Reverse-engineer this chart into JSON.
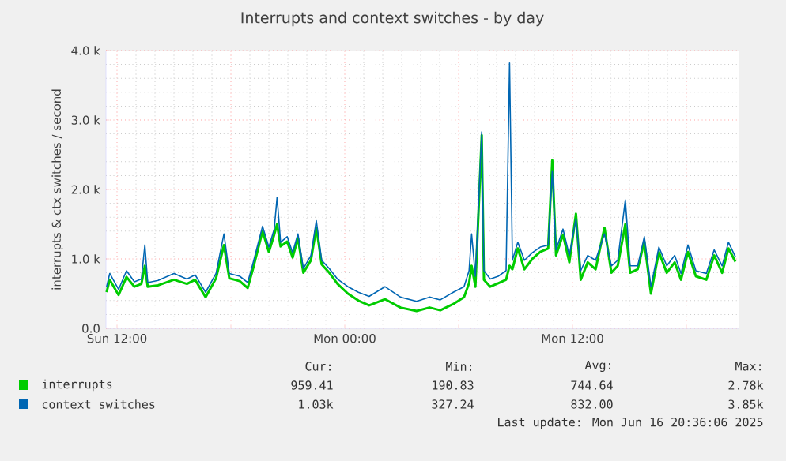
{
  "chart_data": {
    "type": "line",
    "title": "Interrupts and context switches - by day",
    "ylabel": "interrupts & ctx switches / second",
    "xlim": [
      "2025-06-15T11:25",
      "2025-06-16T20:45"
    ],
    "ylim": [
      0,
      4000
    ],
    "xticks": [
      {
        "value": "2025-06-15T12:00",
        "label": "Sun 12:00"
      },
      {
        "value": "2025-06-15T18:00",
        "label": null
      },
      {
        "value": "2025-06-16T00:00",
        "label": "Mon 00:00"
      },
      {
        "value": "2025-06-16T06:00",
        "label": null
      },
      {
        "value": "2025-06-16T12:00",
        "label": "Mon 12:00"
      },
      {
        "value": "2025-06-16T18:00",
        "label": null
      }
    ],
    "yticks": [
      {
        "value": 0,
        "label": "0.0"
      },
      {
        "value": 1000,
        "label": "1.0 k"
      },
      {
        "value": 2000,
        "label": "2.0 k"
      },
      {
        "value": 3000,
        "label": "3.0 k"
      },
      {
        "value": 4000,
        "label": "4.0 k"
      }
    ],
    "grid": true,
    "legend": "bottom",
    "x": [
      "2025-06-15T11:27",
      "2025-06-15T11:37",
      "2025-06-15T12:05",
      "2025-06-15T12:30",
      "2025-06-15T12:55",
      "2025-06-15T13:17",
      "2025-06-15T13:28",
      "2025-06-15T13:37",
      "2025-06-15T14:10",
      "2025-06-15T15:00",
      "2025-06-15T15:41",
      "2025-06-15T16:07",
      "2025-06-15T16:40",
      "2025-06-15T17:13",
      "2025-06-15T17:38",
      "2025-06-15T17:55",
      "2025-06-15T18:28",
      "2025-06-15T18:53",
      "2025-06-15T19:10",
      "2025-06-15T19:40",
      "2025-06-15T20:00",
      "2025-06-15T20:17",
      "2025-06-15T20:26",
      "2025-06-15T20:37",
      "2025-06-15T20:58",
      "2025-06-15T21:15",
      "2025-06-15T21:32",
      "2025-06-15T21:49",
      "2025-06-15T22:13",
      "2025-06-15T22:30",
      "2025-06-15T22:47",
      "2025-06-15T23:11",
      "2025-06-15T23:37",
      "2025-06-16T00:10",
      "2025-06-16T00:43",
      "2025-06-16T01:17",
      "2025-06-16T02:07",
      "2025-06-16T02:56",
      "2025-06-16T03:47",
      "2025-06-16T04:28",
      "2025-06-16T05:02",
      "2025-06-16T05:43",
      "2025-06-16T06:17",
      "2025-06-16T06:33",
      "2025-06-16T06:41",
      "2025-06-16T06:53",
      "2025-06-16T07:13",
      "2025-06-16T07:20",
      "2025-06-16T07:40",
      "2025-06-16T08:05",
      "2025-06-16T08:30",
      "2025-06-16T08:41",
      "2025-06-16T08:50",
      "2025-06-16T09:07",
      "2025-06-16T09:28",
      "2025-06-16T09:53",
      "2025-06-16T10:18",
      "2025-06-16T10:43",
      "2025-06-16T10:56",
      "2025-06-16T11:08",
      "2025-06-16T11:30",
      "2025-06-16T11:50",
      "2025-06-16T12:11",
      "2025-06-16T12:26",
      "2025-06-16T12:48",
      "2025-06-16T13:13",
      "2025-06-16T13:41",
      "2025-06-16T14:03",
      "2025-06-16T14:23",
      "2025-06-16T14:47",
      "2025-06-16T15:02",
      "2025-06-16T15:26",
      "2025-06-16T15:47",
      "2025-06-16T16:08",
      "2025-06-16T16:33",
      "2025-06-16T16:58",
      "2025-06-16T17:23",
      "2025-06-16T17:43",
      "2025-06-16T18:05",
      "2025-06-16T18:30",
      "2025-06-16T19:03",
      "2025-06-16T19:28",
      "2025-06-16T19:53",
      "2025-06-16T20:13",
      "2025-06-16T20:35"
    ],
    "series": [
      {
        "name": "interrupts",
        "color": "#00cc00",
        "values": [
          520,
          700,
          480,
          740,
          600,
          640,
          900,
          600,
          620,
          700,
          640,
          700,
          450,
          720,
          1200,
          720,
          680,
          580,
          860,
          1400,
          1100,
          1350,
          1500,
          1180,
          1250,
          1020,
          1300,
          800,
          980,
          1450,
          920,
          800,
          640,
          500,
          400,
          330,
          420,
          300,
          250,
          300,
          260,
          350,
          450,
          650,
          900,
          600,
          2780,
          700,
          600,
          650,
          700,
          900,
          850,
          1150,
          850,
          1000,
          1100,
          1150,
          2420,
          1050,
          1350,
          950,
          1650,
          700,
          950,
          850,
          1450,
          800,
          900,
          1500,
          800,
          850,
          1250,
          500,
          1100,
          800,
          950,
          700,
          1100,
          750,
          700,
          1050,
          800,
          1150,
          960
        ]
      },
      {
        "name": "context switches",
        "color": "#0066b3",
        "values": [
          600,
          790,
          560,
          830,
          670,
          710,
          1200,
          660,
          690,
          790,
          710,
          770,
          520,
          790,
          1360,
          790,
          750,
          660,
          940,
          1470,
          1170,
          1430,
          1890,
          1240,
          1320,
          1090,
          1360,
          860,
          1050,
          1550,
          980,
          860,
          710,
          600,
          520,
          460,
          600,
          450,
          390,
          450,
          410,
          520,
          600,
          830,
          1360,
          750,
          2830,
          830,
          710,
          750,
          830,
          3820,
          980,
          1240,
          980,
          1090,
          1170,
          1200,
          2270,
          1130,
          1430,
          1050,
          1580,
          830,
          1050,
          980,
          1360,
          900,
          980,
          1850,
          900,
          900,
          1320,
          600,
          1170,
          900,
          1050,
          790,
          1200,
          830,
          790,
          1130,
          900,
          1240,
          1030
        ]
      }
    ],
    "annotations": [
      "Cur:",
      "Min:",
      "Avg:",
      "Max:",
      "959.41",
      "190.83",
      "744.64",
      "2.78k",
      "1.03k",
      "327.24",
      "832.00",
      "3.85k",
      "Last update: Mon Jun 16 20:36:06 2025"
    ]
  }
}
